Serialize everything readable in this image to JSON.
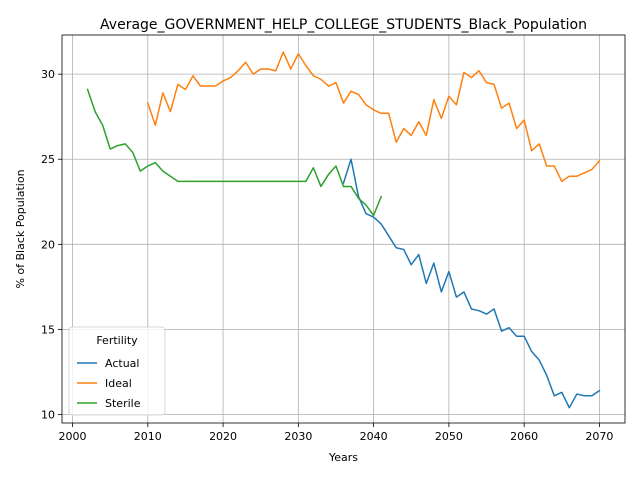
{
  "chart_data": {
    "type": "line",
    "title": "Average_GOVERNMENT_HELP_COLLEGE_STUDENTS_Black_Population",
    "xlabel": "Years",
    "ylabel": "% of Black Population",
    "xlim": [
      1998.6,
      2073.4
    ],
    "ylim": [
      9.5,
      32.3
    ],
    "xticks": [
      2000,
      2010,
      2020,
      2030,
      2040,
      2050,
      2060,
      2070
    ],
    "yticks": [
      10,
      15,
      20,
      25,
      30
    ],
    "grid": true,
    "legend": {
      "title": "Fertility",
      "placement": "lower-left"
    },
    "series": [
      {
        "name": "Actual",
        "color": "#1f77b4",
        "x": [
          2036,
          2037,
          2038,
          2039,
          2040,
          2041,
          2042,
          2043,
          2044,
          2045,
          2046,
          2047,
          2048,
          2049,
          2050,
          2051,
          2052,
          2053,
          2054,
          2055,
          2056,
          2057,
          2058,
          2059,
          2060,
          2061,
          2062,
          2063,
          2064,
          2065,
          2066,
          2067,
          2068,
          2069,
          2070
        ],
        "y": [
          23.6,
          25.0,
          22.8,
          21.8,
          21.6,
          21.2,
          20.5,
          19.8,
          19.7,
          18.8,
          19.4,
          17.7,
          18.9,
          17.2,
          18.4,
          16.9,
          17.2,
          16.2,
          16.1,
          15.9,
          16.2,
          14.9,
          15.1,
          14.6,
          14.6,
          13.7,
          13.2,
          12.3,
          11.1,
          11.3,
          10.4,
          11.2,
          11.1,
          11.1,
          11.4
        ]
      },
      {
        "name": "Ideal",
        "color": "#ff7f0e",
        "x": [
          2010,
          2011,
          2012,
          2013,
          2014,
          2015,
          2016,
          2017,
          2018,
          2019,
          2020,
          2021,
          2022,
          2023,
          2024,
          2025,
          2026,
          2027,
          2028,
          2029,
          2030,
          2031,
          2032,
          2033,
          2034,
          2035,
          2036,
          2037,
          2038,
          2039,
          2040,
          2041,
          2042,
          2043,
          2044,
          2045,
          2046,
          2047,
          2048,
          2049,
          2050,
          2051,
          2052,
          2053,
          2054,
          2055,
          2056,
          2057,
          2058,
          2059,
          2060,
          2061,
          2062,
          2063,
          2064,
          2065,
          2066,
          2067,
          2068,
          2069,
          2070
        ],
        "y": [
          28.3,
          27.0,
          28.9,
          27.8,
          29.4,
          29.1,
          29.9,
          29.3,
          29.3,
          29.3,
          29.6,
          29.8,
          30.2,
          30.7,
          30.0,
          30.3,
          30.3,
          30.2,
          31.3,
          30.3,
          31.2,
          30.5,
          29.9,
          29.7,
          29.3,
          29.5,
          28.3,
          29.0,
          28.8,
          28.2,
          27.9,
          27.7,
          27.7,
          26.0,
          26.8,
          26.4,
          27.2,
          26.4,
          28.5,
          27.4,
          28.7,
          28.2,
          30.1,
          29.8,
          30.2,
          29.5,
          29.4,
          28.0,
          28.3,
          26.8,
          27.3,
          25.5,
          25.9,
          24.6,
          24.6,
          23.7,
          24.0,
          24.0,
          24.2,
          24.4,
          24.9
        ]
      },
      {
        "name": "Sterile",
        "color": "#2ca02c",
        "x": [
          2002,
          2003,
          2004,
          2005,
          2006,
          2007,
          2008,
          2009,
          2010,
          2011,
          2012,
          2013,
          2014,
          2015,
          2016,
          2017,
          2018,
          2019,
          2020,
          2021,
          2022,
          2023,
          2024,
          2025,
          2026,
          2027,
          2028,
          2029,
          2030,
          2031,
          2032,
          2033,
          2034,
          2035,
          2036,
          2037,
          2038,
          2039,
          2040,
          2041
        ],
        "y": [
          29.1,
          27.8,
          27.0,
          25.6,
          25.8,
          25.9,
          25.4,
          24.3,
          24.6,
          24.8,
          24.3,
          24.0,
          23.7,
          23.7,
          23.7,
          23.7,
          23.7,
          23.7,
          23.7,
          23.7,
          23.7,
          23.7,
          23.7,
          23.7,
          23.7,
          23.7,
          23.7,
          23.7,
          23.7,
          23.7,
          24.5,
          23.4,
          24.1,
          24.6,
          23.4,
          23.4,
          22.7,
          22.3,
          21.7,
          22.8
        ]
      }
    ]
  }
}
